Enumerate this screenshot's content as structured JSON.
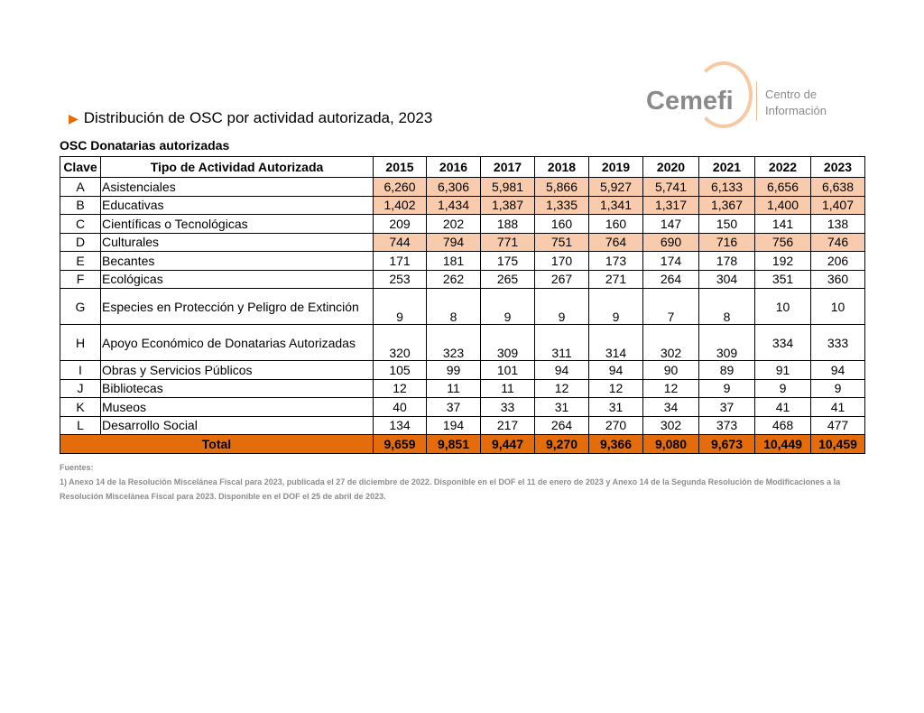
{
  "title": "Distribución de OSC por actividad autorizada, 2023",
  "subtitle": "OSC Donatarias autorizadas",
  "logo": {
    "name": "Cemefi",
    "line1": "Centro de",
    "line2": "Información"
  },
  "colors": {
    "accent": "#e46c0a",
    "highlight": "#f8cbad"
  },
  "table": {
    "headers": [
      "Clave",
      "Tipo de Actividad Autorizada",
      "2015",
      "2016",
      "2017",
      "2018",
      "2019",
      "2020",
      "2021",
      "2022",
      "2023"
    ],
    "rows": [
      {
        "clave": "A",
        "tipo": "Asistenciales",
        "values": [
          "6,260",
          "6,306",
          "5,981",
          "5,866",
          "5,927",
          "5,741",
          "6,133",
          "6,656",
          "6,638"
        ],
        "highlight": true
      },
      {
        "clave": "B",
        "tipo": "Educativas",
        "values": [
          "1,402",
          "1,434",
          "1,387",
          "1,335",
          "1,341",
          "1,317",
          "1,367",
          "1,400",
          "1,407"
        ],
        "highlight": true
      },
      {
        "clave": "C",
        "tipo": "Científicas o Tecnológicas",
        "values": [
          "209",
          "202",
          "188",
          "160",
          "160",
          "147",
          "150",
          "141",
          "138"
        ]
      },
      {
        "clave": "D",
        "tipo": "Culturales",
        "values": [
          "744",
          "794",
          "771",
          "751",
          "764",
          "690",
          "716",
          "756",
          "746"
        ],
        "highlight": true
      },
      {
        "clave": "E",
        "tipo": "Becantes",
        "values": [
          "171",
          "181",
          "175",
          "170",
          "173",
          "174",
          "178",
          "192",
          "206"
        ]
      },
      {
        "clave": "F",
        "tipo": "Ecológicas",
        "values": [
          "253",
          "262",
          "265",
          "267",
          "271",
          "264",
          "304",
          "351",
          "360"
        ]
      },
      {
        "clave": "G",
        "tipo": "Especies en Protección y Peligro de Extinción",
        "values": [
          "9",
          "8",
          "9",
          "9",
          "9",
          "7",
          "8",
          "10",
          "10"
        ],
        "tall": true
      },
      {
        "clave": "H",
        "tipo": "Apoyo Económico de Donatarias Autorizadas",
        "values": [
          "320",
          "323",
          "309",
          "311",
          "314",
          "302",
          "309",
          "334",
          "333"
        ],
        "tall": true
      },
      {
        "clave": "I",
        "tipo": "Obras y Servicios Públicos",
        "values": [
          "105",
          "99",
          "101",
          "94",
          "94",
          "90",
          "89",
          "91",
          "94"
        ]
      },
      {
        "clave": "J",
        "tipo": "Bibliotecas",
        "values": [
          "12",
          "11",
          "11",
          "12",
          "12",
          "12",
          "9",
          "9",
          "9"
        ]
      },
      {
        "clave": "K",
        "tipo": "Museos",
        "values": [
          "40",
          "37",
          "33",
          "31",
          "31",
          "34",
          "37",
          "41",
          "41"
        ]
      },
      {
        "clave": "L",
        "tipo": "Desarrollo Social",
        "values": [
          "134",
          "194",
          "217",
          "264",
          "270",
          "302",
          "373",
          "468",
          "477"
        ]
      }
    ],
    "total": {
      "label": "Total",
      "values": [
        "9,659",
        "9,851",
        "9,447",
        "9,270",
        "9,366",
        "9,080",
        "9,673",
        "10,449",
        "10,459"
      ]
    }
  },
  "notes": {
    "heading": "Fuentes:",
    "text": "1) Anexo 14 de la Resolución Miscelánea Fiscal para 2023, publicada el 27 de diciembre de 2022. Disponible en el DOF el 11 de enero de 2023 y Anexo 14 de la Segunda Resolución de Modificaciones a la Resolución Miscelánea Fiscal para 2023. Disponible en el DOF el 25 de abril de 2023."
  }
}
